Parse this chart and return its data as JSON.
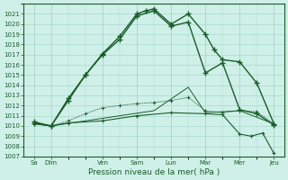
{
  "background_color": "#cff0e8",
  "grid_color": "#a8d8cc",
  "line_color": "#1a5c2a",
  "xlabel": "Pression niveau de la mer( hPa )",
  "ylim": [
    1007,
    1022
  ],
  "yticks": [
    1007,
    1008,
    1009,
    1010,
    1011,
    1012,
    1013,
    1014,
    1015,
    1016,
    1017,
    1018,
    1019,
    1020,
    1021
  ],
  "xlabels": [
    "Sa",
    "Dim",
    "Ven",
    "Sam",
    "Lun",
    "Mar",
    "Mer",
    "Jeu"
  ],
  "x_positions": [
    0,
    0.5,
    2,
    3,
    4,
    5,
    6,
    7
  ],
  "series1_x": [
    0,
    0.5,
    1.0,
    1.5,
    2.0,
    2.5,
    3.0,
    3.25,
    3.5,
    4.0,
    4.5,
    5.0,
    5.25,
    5.5,
    6.0,
    6.5,
    7.0
  ],
  "series1_y": [
    1010.4,
    1010.0,
    1012.7,
    1015.0,
    1017.1,
    1018.8,
    1021.0,
    1021.3,
    1021.5,
    1020.0,
    1021.0,
    1019.0,
    1017.5,
    1016.5,
    1016.3,
    1014.2,
    1010.2
  ],
  "series2_x": [
    0,
    0.5,
    1.0,
    1.5,
    2.0,
    2.5,
    3.0,
    3.5,
    4.0,
    4.5,
    5.0,
    5.5,
    6.0,
    6.5,
    7.0
  ],
  "series2_y": [
    1010.3,
    1010.0,
    1012.5,
    1015.0,
    1017.0,
    1018.5,
    1020.8,
    1021.3,
    1019.8,
    1020.2,
    1015.2,
    1016.2,
    1011.6,
    1011.2,
    1010.1
  ],
  "series3_x": [
    0,
    0.5,
    1.0,
    1.5,
    2.0,
    2.5,
    3.0,
    3.5,
    4.0,
    4.5,
    5.0,
    5.5,
    6.0,
    6.5,
    7.0
  ],
  "series3_y": [
    1010.2,
    1010.0,
    1010.5,
    1011.2,
    1011.8,
    1012.0,
    1012.2,
    1012.3,
    1012.5,
    1012.8,
    1011.5,
    1011.3,
    1011.5,
    1011.4,
    1010.2
  ],
  "series4_x": [
    0,
    0.5,
    1.5,
    2.5,
    3.5,
    4.5,
    5.0,
    5.5,
    6.0,
    7.0
  ],
  "series4_y": [
    1010.2,
    1010.0,
    1010.5,
    1011.0,
    1011.5,
    1013.8,
    1011.3,
    1011.4,
    1011.5,
    1010.2
  ],
  "series5_x": [
    0,
    0.5,
    1.0,
    2.0,
    3.0,
    4.0,
    5.0,
    5.5,
    6.0,
    6.33,
    6.67,
    7.0
  ],
  "series5_y": [
    1010.3,
    1010.0,
    1010.3,
    1010.5,
    1011.0,
    1011.3,
    1011.2,
    1011.1,
    1009.2,
    1009.0,
    1009.3,
    1007.3
  ]
}
